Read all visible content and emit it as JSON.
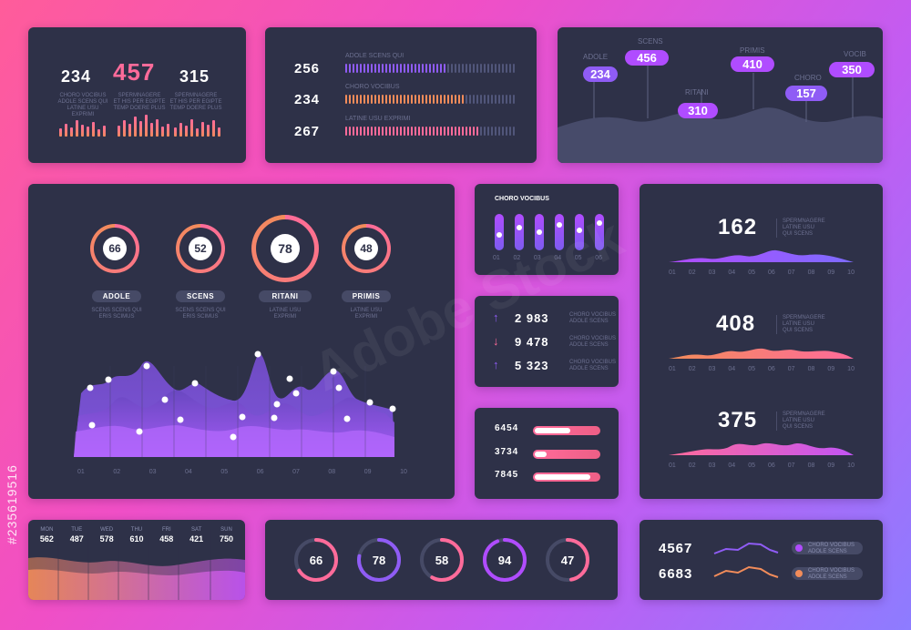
{
  "watermark": "Adobe Stock",
  "stock_id": "#235619516",
  "colors": {
    "panel": "#2e3148",
    "pink": "#ff6b9a",
    "orange": "#f28c5a",
    "purple": "#8f5cf5",
    "violet": "#b04cff",
    "track": "#464a66"
  },
  "panel1": {
    "stats": [
      {
        "value": "234",
        "desc": [
          "CHORO VOCIBUS",
          "ADOLE SCENS QUI",
          "LATINE USU EXPRIMI"
        ]
      },
      {
        "value": "457",
        "desc": [
          "SPERMNAGERE",
          "ET HIS PER EGIPTE",
          "TEMP DOERE PLUS"
        ]
      },
      {
        "value": "315",
        "desc": [
          "SPERMNAGERE",
          "ET HIS PER EGIPTE",
          "TEMP DOERE PLUS"
        ]
      }
    ]
  },
  "panel2": {
    "rows": [
      {
        "value": "256",
        "label": "ADOLE SCENS QUI",
        "fraction": 0.59,
        "color": "#8f5cf5"
      },
      {
        "value": "234",
        "label": "CHORO VOCIBUS",
        "fraction": 0.7,
        "color": "#f28c5a"
      },
      {
        "value": "267",
        "label": "LATINE USU EXPRIMI",
        "fraction": 0.79,
        "color": "#ff6b9a"
      }
    ]
  },
  "panel3": {
    "pills": [
      {
        "label": "ADOLE",
        "value": "234"
      },
      {
        "label": "SCENS",
        "value": "456"
      },
      {
        "label": "RITANI",
        "value": "310"
      },
      {
        "label": "PRIMIS",
        "value": "410"
      },
      {
        "label": "CHORO",
        "value": "157"
      },
      {
        "label": "VOCIB",
        "value": "350"
      }
    ]
  },
  "main": {
    "gauges": [
      {
        "value": "66",
        "label": "ADOLE",
        "fraction": 0.66
      },
      {
        "value": "52",
        "label": "SCENS",
        "fraction": 0.52
      },
      {
        "value": "78",
        "label": "RITANI",
        "fraction": 0.78
      },
      {
        "value": "48",
        "label": "PRIMIS",
        "fraction": 0.48
      }
    ],
    "gauge_desc": [
      "SCENS SCENS QUI",
      "ERIS SCIMUS",
      "LATINE USU",
      "EXPRIMI"
    ],
    "x_ticks": [
      "01",
      "02",
      "03",
      "04",
      "05",
      "06",
      "07",
      "08",
      "09",
      "10"
    ]
  },
  "sliders": {
    "title": "CHORO VOCIBUS",
    "ticks": [
      "01",
      "02",
      "03",
      "04",
      "05",
      "06"
    ],
    "levels": [
      0.6,
      0.35,
      0.5,
      0.25,
      0.45,
      0.2
    ]
  },
  "changes": {
    "rows": [
      {
        "arrow": "↑",
        "value": "2 983",
        "color": "#8f5cf5",
        "desc": [
          "CHORO VOCIBUS",
          "ADOLE SCENS"
        ]
      },
      {
        "arrow": "↓",
        "value": "9 478",
        "color": "#ff6b9a",
        "desc": [
          "CHORO VOCIBUS",
          "ADOLE SCENS"
        ]
      },
      {
        "arrow": "↑",
        "value": "5 323",
        "color": "#8f5cf5",
        "desc": [
          "CHORO VOCIBUS",
          "ADOLE SCENS"
        ]
      }
    ]
  },
  "progress": {
    "rows": [
      {
        "value": "6454",
        "fraction": 0.55
      },
      {
        "value": "3734",
        "fraction": 0.18
      },
      {
        "value": "7845",
        "fraction": 0.87
      }
    ]
  },
  "waves": {
    "ticks": [
      "01",
      "02",
      "03",
      "04",
      "05",
      "06",
      "07",
      "08",
      "09",
      "10"
    ],
    "items": [
      {
        "value": "162",
        "desc": [
          "SPERMNAGERE",
          "LATINE USU",
          "QUI SCENS"
        ]
      },
      {
        "value": "408",
        "desc": [
          "SPERMNAGERE",
          "LATINE USU",
          "QUI SCENS"
        ]
      },
      {
        "value": "375",
        "desc": [
          "SPERMNAGERE",
          "LATINE USU",
          "QUI SCENS"
        ]
      }
    ]
  },
  "week": {
    "days": [
      {
        "day": "MON",
        "value": "562"
      },
      {
        "day": "TUE",
        "value": "487"
      },
      {
        "day": "WED",
        "value": "578"
      },
      {
        "day": "THU",
        "value": "610"
      },
      {
        "day": "FRI",
        "value": "458"
      },
      {
        "day": "SAT",
        "value": "421"
      },
      {
        "day": "SUN",
        "value": "750"
      }
    ]
  },
  "donuts": [
    {
      "value": "66",
      "fraction": 0.66,
      "color": "#ff6b9a"
    },
    {
      "value": "78",
      "fraction": 0.78,
      "color": "#8f5cf5"
    },
    {
      "value": "58",
      "fraction": 0.58,
      "color": "#ff6b9a"
    },
    {
      "value": "94",
      "fraction": 0.94,
      "color": "#b04cff"
    },
    {
      "value": "47",
      "fraction": 0.47,
      "color": "#ff6b9a"
    }
  ],
  "legend": {
    "rows": [
      {
        "value": "4567",
        "color": "#8f5cf5",
        "desc": [
          "CHORO VOCIBUS",
          "ADOLE SCENS"
        ]
      },
      {
        "value": "6683",
        "color": "#f28c5a",
        "desc": [
          "CHORO VOCIBUS",
          "ADOLE SCENS"
        ]
      }
    ]
  }
}
